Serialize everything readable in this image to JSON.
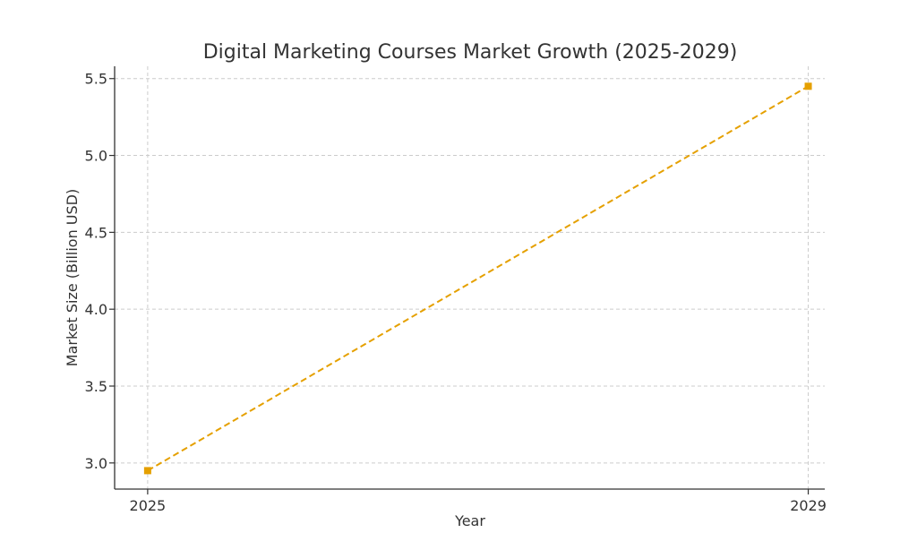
{
  "chart_data": {
    "type": "line",
    "title": "Digital Marketing Courses Market Growth (2025-2029)",
    "xlabel": "Year",
    "ylabel": "Market Size (Billion USD)",
    "x": [
      2025,
      2029
    ],
    "x_tick_labels": [
      "2025",
      "2029"
    ],
    "y_ticks": [
      3.0,
      3.5,
      4.0,
      4.5,
      5.0,
      5.5
    ],
    "y_tick_labels": [
      "3.0",
      "3.5",
      "4.0",
      "4.5",
      "5.0",
      "5.5"
    ],
    "xlim": [
      2024.8,
      2029.1
    ],
    "ylim": [
      2.83,
      5.58
    ],
    "grid": true,
    "series": [
      {
        "values": [
          2.95,
          5.45
        ],
        "color": "#e5a000",
        "line_style": "dashed",
        "marker": "square"
      }
    ]
  }
}
